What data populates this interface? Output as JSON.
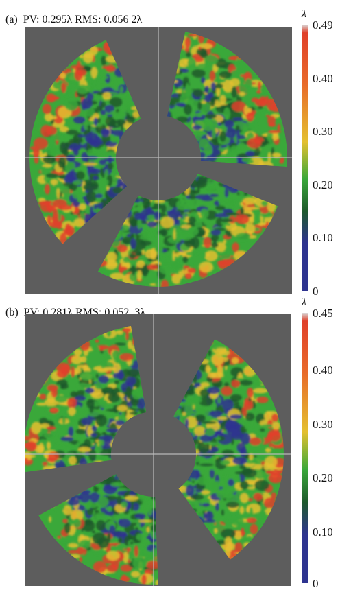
{
  "panels": [
    {
      "caption": "(a)  PV: 0.295λ RMS: 0.056 2λ",
      "colorbar": {
        "unit": "λ",
        "ticks": [
          "0.49",
          "0.40",
          "0.30",
          "0.20",
          "0.10",
          "0"
        ]
      }
    },
    {
      "caption": "(b)  PV: 0.281λ RMS: 0.052  3λ",
      "colorbar": {
        "unit": "λ",
        "ticks": [
          "0.45",
          "0.40",
          "0.30",
          "0.20",
          "0.10",
          "0"
        ]
      }
    }
  ],
  "colors": {
    "background": "#5d5d5d",
    "low": "#2e3490",
    "mid_low": "#1e5a2c",
    "mid": "#3aa83a",
    "mid_high": "#e4c030",
    "high": "#e0402a",
    "crosshair": "#bdbdbd"
  }
}
